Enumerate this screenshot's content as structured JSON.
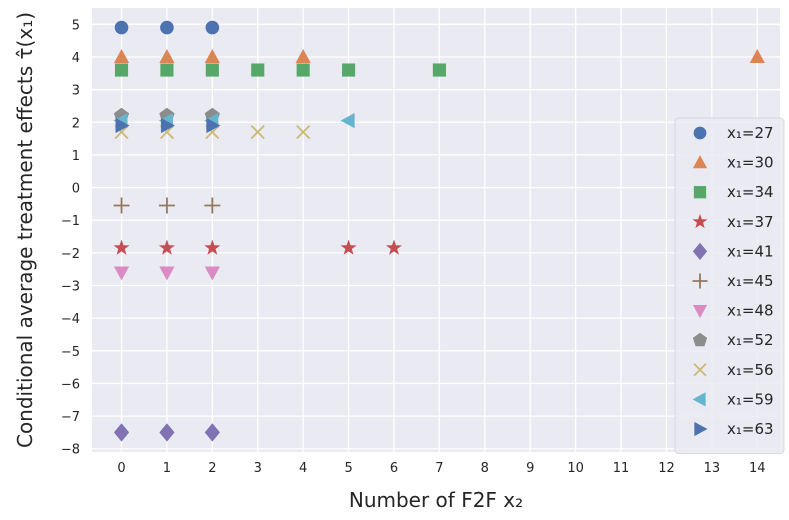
{
  "chart_data": {
    "type": "scatter",
    "xlabel": "Number of F2F x₂",
    "ylabel": "Conditional average treatment effects τ̂(x₁)",
    "xlim": [
      -0.65,
      14.5
    ],
    "ylim": [
      -8.1,
      5.5
    ],
    "xticks": [
      0,
      1,
      2,
      3,
      4,
      5,
      6,
      7,
      8,
      9,
      10,
      11,
      12,
      13,
      14
    ],
    "yticks": [
      -8,
      -7,
      -6,
      -5,
      -4,
      -3,
      -2,
      -1,
      0,
      1,
      2,
      3,
      4,
      5
    ],
    "grid": true,
    "legend_position": "right",
    "background": "#eaeaf2",
    "series": [
      {
        "name": "x₁=27",
        "marker": "circle",
        "color": "#4c72b0",
        "points": [
          [
            0,
            4.9
          ],
          [
            1,
            4.9
          ],
          [
            2,
            4.9
          ]
        ]
      },
      {
        "name": "x₁=30",
        "marker": "triangle-up",
        "color": "#dd8452",
        "points": [
          [
            0,
            4.0
          ],
          [
            1,
            4.0
          ],
          [
            2,
            4.0
          ],
          [
            4,
            4.0
          ],
          [
            14,
            4.0
          ]
        ]
      },
      {
        "name": "x₁=34",
        "marker": "square",
        "color": "#55a868",
        "points": [
          [
            0,
            3.6
          ],
          [
            1,
            3.6
          ],
          [
            2,
            3.6
          ],
          [
            3,
            3.6
          ],
          [
            4,
            3.6
          ],
          [
            5,
            3.6
          ],
          [
            7,
            3.6
          ]
        ]
      },
      {
        "name": "x₁=37",
        "marker": "star",
        "color": "#c44e52",
        "points": [
          [
            0,
            -1.85
          ],
          [
            1,
            -1.85
          ],
          [
            2,
            -1.85
          ],
          [
            5,
            -1.85
          ],
          [
            6,
            -1.85
          ]
        ]
      },
      {
        "name": "x₁=41",
        "marker": "diamond",
        "color": "#8172b3",
        "points": [
          [
            0,
            -7.5
          ],
          [
            1,
            -7.5
          ],
          [
            2,
            -7.5
          ]
        ]
      },
      {
        "name": "x₁=45",
        "marker": "plus",
        "color": "#937860",
        "points": [
          [
            0,
            -0.55
          ],
          [
            1,
            -0.55
          ],
          [
            2,
            -0.55
          ]
        ]
      },
      {
        "name": "x₁=48",
        "marker": "triangle-down",
        "color": "#da8bc3",
        "points": [
          [
            0,
            -2.6
          ],
          [
            1,
            -2.6
          ],
          [
            2,
            -2.6
          ]
        ]
      },
      {
        "name": "x₁=52",
        "marker": "pentagon",
        "color": "#8c8c8c",
        "points": [
          [
            0,
            2.2
          ],
          [
            1,
            2.2
          ],
          [
            2,
            2.2
          ]
        ]
      },
      {
        "name": "x₁=56",
        "marker": "x",
        "color": "#ccb974",
        "points": [
          [
            0,
            1.7
          ],
          [
            1,
            1.7
          ],
          [
            2,
            1.7
          ],
          [
            3,
            1.7
          ],
          [
            4,
            1.7
          ]
        ]
      },
      {
        "name": "x₁=59",
        "marker": "triangle-left",
        "color": "#64b5cd",
        "points": [
          [
            0,
            2.05
          ],
          [
            1,
            2.05
          ],
          [
            2,
            2.05
          ],
          [
            5,
            2.05
          ]
        ]
      },
      {
        "name": "x₁=63",
        "marker": "triangle-right",
        "color": "#4c72b0",
        "points": [
          [
            0,
            1.9
          ],
          [
            1,
            1.9
          ],
          [
            2,
            1.9
          ]
        ]
      }
    ]
  }
}
